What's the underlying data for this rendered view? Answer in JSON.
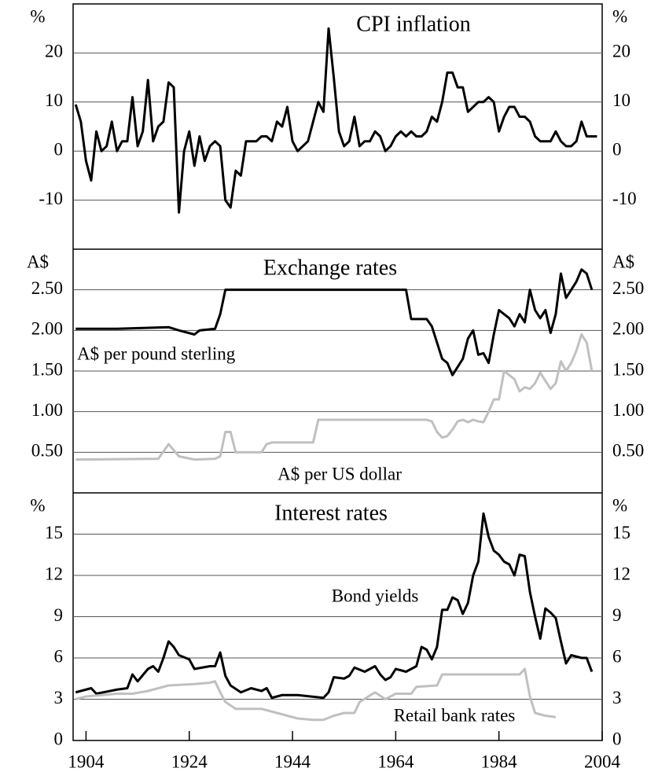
{
  "chart_data": [
    {
      "type": "line",
      "title": "CPI inflation",
      "y_unit": "%",
      "xlim": [
        1901.5,
        2004
      ],
      "ylim": [
        -20,
        30
      ],
      "yticks": [
        -10,
        0,
        10,
        20
      ],
      "grid": true,
      "series": [
        {
          "name": "CPI inflation",
          "color": "#000000",
          "x": [
            1902,
            1903,
            1904,
            1905,
            1906,
            1907,
            1908,
            1909,
            1910,
            1911,
            1912,
            1913,
            1914,
            1915,
            1916,
            1917,
            1918,
            1919,
            1920,
            1921,
            1922,
            1923,
            1924,
            1925,
            1926,
            1927,
            1928,
            1929,
            1930,
            1931,
            1932,
            1933,
            1934,
            1935,
            1936,
            1937,
            1938,
            1939,
            1940,
            1941,
            1942,
            1943,
            1944,
            1945,
            1946,
            1947,
            1948,
            1949,
            1950,
            1951,
            1952,
            1953,
            1954,
            1955,
            1956,
            1957,
            1958,
            1959,
            1960,
            1961,
            1962,
            1963,
            1964,
            1965,
            1966,
            1967,
            1968,
            1969,
            1970,
            1971,
            1972,
            1973,
            1974,
            1975,
            1976,
            1977,
            1978,
            1979,
            1980,
            1981,
            1982,
            1983,
            1984,
            1985,
            1986,
            1987,
            1988,
            1989,
            1990,
            1991,
            1992,
            1993,
            1994,
            1995,
            1996,
            1997,
            1998,
            1999,
            2000,
            2001,
            2002,
            2003
          ],
          "values": [
            9.5,
            6,
            -2,
            -6,
            4,
            0,
            1,
            6,
            0,
            2,
            2,
            11,
            1,
            4,
            14.5,
            2,
            5,
            6,
            14,
            13,
            -12.5,
            0,
            4,
            -3,
            3,
            -2,
            1,
            2,
            1,
            -10,
            -11.5,
            -4,
            -5,
            2,
            2,
            2,
            3,
            3,
            2,
            6,
            5,
            9,
            2,
            0,
            1,
            2,
            6,
            10,
            8,
            25,
            15,
            4,
            1,
            2,
            7,
            1,
            2,
            2,
            4,
            3,
            0,
            1,
            3,
            4,
            3,
            4,
            3,
            3,
            4,
            7,
            6,
            10,
            16,
            16,
            13,
            13,
            8,
            9,
            10,
            10,
            11,
            10,
            4,
            7,
            9,
            9,
            7,
            7,
            6,
            3,
            2,
            2,
            2,
            4,
            2,
            1,
            1,
            2,
            6,
            3,
            3,
            3
          ]
        }
      ]
    },
    {
      "type": "line",
      "title": "Exchange rates",
      "y_unit": "A$",
      "xlim": [
        1901.5,
        2004
      ],
      "ylim": [
        0,
        3
      ],
      "yticks": [
        {
          "value": 0.5,
          "label": "0.50"
        },
        {
          "value": 1,
          "label": "1.00"
        },
        {
          "value": 1.5,
          "label": "1.50"
        },
        {
          "value": 2,
          "label": "2.00"
        },
        {
          "value": 2.5,
          "label": "2.50"
        }
      ],
      "grid": true,
      "series": [
        {
          "name": "A$ per pound sterling",
          "color": "#000000",
          "x": [
            1902,
            1910,
            1920,
            1922,
            1925,
            1926,
            1929,
            1930,
            1931,
            1966,
            1967,
            1970,
            1971,
            1972,
            1973,
            1974,
            1975,
            1976,
            1977,
            1978,
            1979,
            1980,
            1981,
            1982,
            1983,
            1984,
            1985,
            1986,
            1987,
            1988,
            1989,
            1990,
            1991,
            1992,
            1993,
            1994,
            1995,
            1996,
            1997,
            1998,
            1999,
            2000,
            2001,
            2002
          ],
          "values": [
            2.02,
            2.02,
            2.04,
            2.0,
            1.95,
            2.0,
            2.02,
            2.2,
            2.5,
            2.5,
            2.14,
            2.14,
            2.05,
            1.85,
            1.65,
            1.6,
            1.45,
            1.55,
            1.65,
            1.9,
            2.0,
            1.7,
            1.72,
            1.6,
            1.95,
            2.25,
            2.2,
            2.15,
            2.05,
            2.2,
            2.1,
            2.5,
            2.25,
            2.15,
            2.25,
            1.97,
            2.2,
            2.7,
            2.4,
            2.5,
            2.6,
            2.75,
            2.7,
            2.5
          ]
        },
        {
          "name": "A$ per US dollar",
          "color": "#c0c0c0",
          "x": [
            1902,
            1918,
            1920,
            1922,
            1925,
            1929,
            1930,
            1931,
            1932,
            1933,
            1938,
            1939,
            1940,
            1948,
            1949,
            1970,
            1971,
            1972,
            1973,
            1974,
            1975,
            1976,
            1977,
            1978,
            1979,
            1980,
            1981,
            1982,
            1983,
            1984,
            1985,
            1986,
            1987,
            1988,
            1989,
            1990,
            1991,
            1992,
            1993,
            1994,
            1995,
            1996,
            1997,
            1998,
            1999,
            2000,
            2001,
            2002
          ],
          "values": [
            0.41,
            0.42,
            0.6,
            0.45,
            0.41,
            0.42,
            0.45,
            0.75,
            0.75,
            0.5,
            0.5,
            0.6,
            0.62,
            0.62,
            0.9,
            0.9,
            0.88,
            0.75,
            0.68,
            0.7,
            0.78,
            0.88,
            0.9,
            0.87,
            0.9,
            0.88,
            0.87,
            1.0,
            1.15,
            1.15,
            1.5,
            1.45,
            1.4,
            1.25,
            1.3,
            1.28,
            1.35,
            1.48,
            1.38,
            1.28,
            1.35,
            1.62,
            1.5,
            1.6,
            1.75,
            1.95,
            1.85,
            1.5
          ]
        }
      ]
    },
    {
      "type": "line",
      "title": "Interest rates",
      "y_unit": "%",
      "xlim": [
        1901.5,
        2004
      ],
      "ylim": [
        0,
        18
      ],
      "yticks": [
        0,
        3,
        6,
        9,
        12,
        15
      ],
      "grid": true,
      "xticks": [
        1904,
        1924,
        1944,
        1964,
        1984,
        2004
      ],
      "series": [
        {
          "name": "Bond yields",
          "color": "#000000",
          "x": [
            1902,
            1905,
            1906,
            1910,
            1912,
            1913,
            1914,
            1916,
            1917,
            1918,
            1919,
            1920,
            1921,
            1922,
            1924,
            1925,
            1928,
            1929,
            1930,
            1931,
            1932,
            1934,
            1936,
            1938,
            1939,
            1940,
            1942,
            1945,
            1950,
            1951,
            1952,
            1954,
            1955,
            1956,
            1958,
            1960,
            1961,
            1962,
            1963,
            1964,
            1966,
            1967,
            1968,
            1969,
            1970,
            1971,
            1972,
            1973,
            1974,
            1975,
            1976,
            1977,
            1978,
            1979,
            1980,
            1981,
            1982,
            1983,
            1984,
            1985,
            1986,
            1987,
            1988,
            1989,
            1990,
            1991,
            1992,
            1993,
            1994,
            1995,
            1996,
            1997,
            1998,
            2000,
            2001,
            2002
          ],
          "values": [
            3.5,
            3.8,
            3.4,
            3.7,
            3.8,
            4.8,
            4.3,
            5.2,
            5.4,
            5.0,
            6.0,
            7.2,
            6.8,
            6.2,
            5.9,
            5.2,
            5.4,
            5.4,
            6.4,
            4.7,
            4.0,
            3.5,
            3.8,
            3.6,
            3.8,
            3.1,
            3.3,
            3.3,
            3.1,
            3.5,
            4.6,
            4.5,
            4.7,
            5.3,
            5.0,
            5.4,
            4.8,
            4.4,
            4.6,
            5.2,
            5.0,
            5.2,
            5.4,
            6.8,
            6.6,
            5.9,
            6.8,
            9.5,
            9.5,
            10.4,
            10.2,
            9.2,
            10.0,
            12.0,
            13.0,
            16.5,
            14.8,
            13.8,
            13.5,
            13.0,
            12.8,
            12.0,
            13.5,
            13.4,
            10.8,
            9.0,
            7.4,
            9.6,
            9.3,
            8.9,
            7.2,
            5.6,
            6.2,
            6.0,
            6.0,
            5.0
          ]
        },
        {
          "name": "Retail bank rates",
          "color": "#c0c0c0",
          "x": [
            1902,
            1904,
            1910,
            1913,
            1916,
            1918,
            1920,
            1925,
            1928,
            1929,
            1930,
            1931,
            1933,
            1938,
            1940,
            1945,
            1948,
            1950,
            1952,
            1954,
            1956,
            1957,
            1960,
            1962,
            1964,
            1967,
            1968,
            1972,
            1973,
            1988,
            1989,
            1990,
            1991,
            1993,
            1995
          ],
          "values": [
            3.0,
            3.2,
            3.4,
            3.4,
            3.6,
            3.8,
            4.0,
            4.1,
            4.2,
            4.3,
            3.5,
            2.8,
            2.3,
            2.3,
            2.1,
            1.6,
            1.5,
            1.5,
            1.8,
            2.0,
            2.0,
            2.8,
            3.5,
            3.0,
            3.4,
            3.4,
            3.9,
            4.0,
            4.8,
            4.8,
            5.2,
            3.2,
            2.0,
            1.8,
            1.7
          ]
        }
      ]
    }
  ]
}
